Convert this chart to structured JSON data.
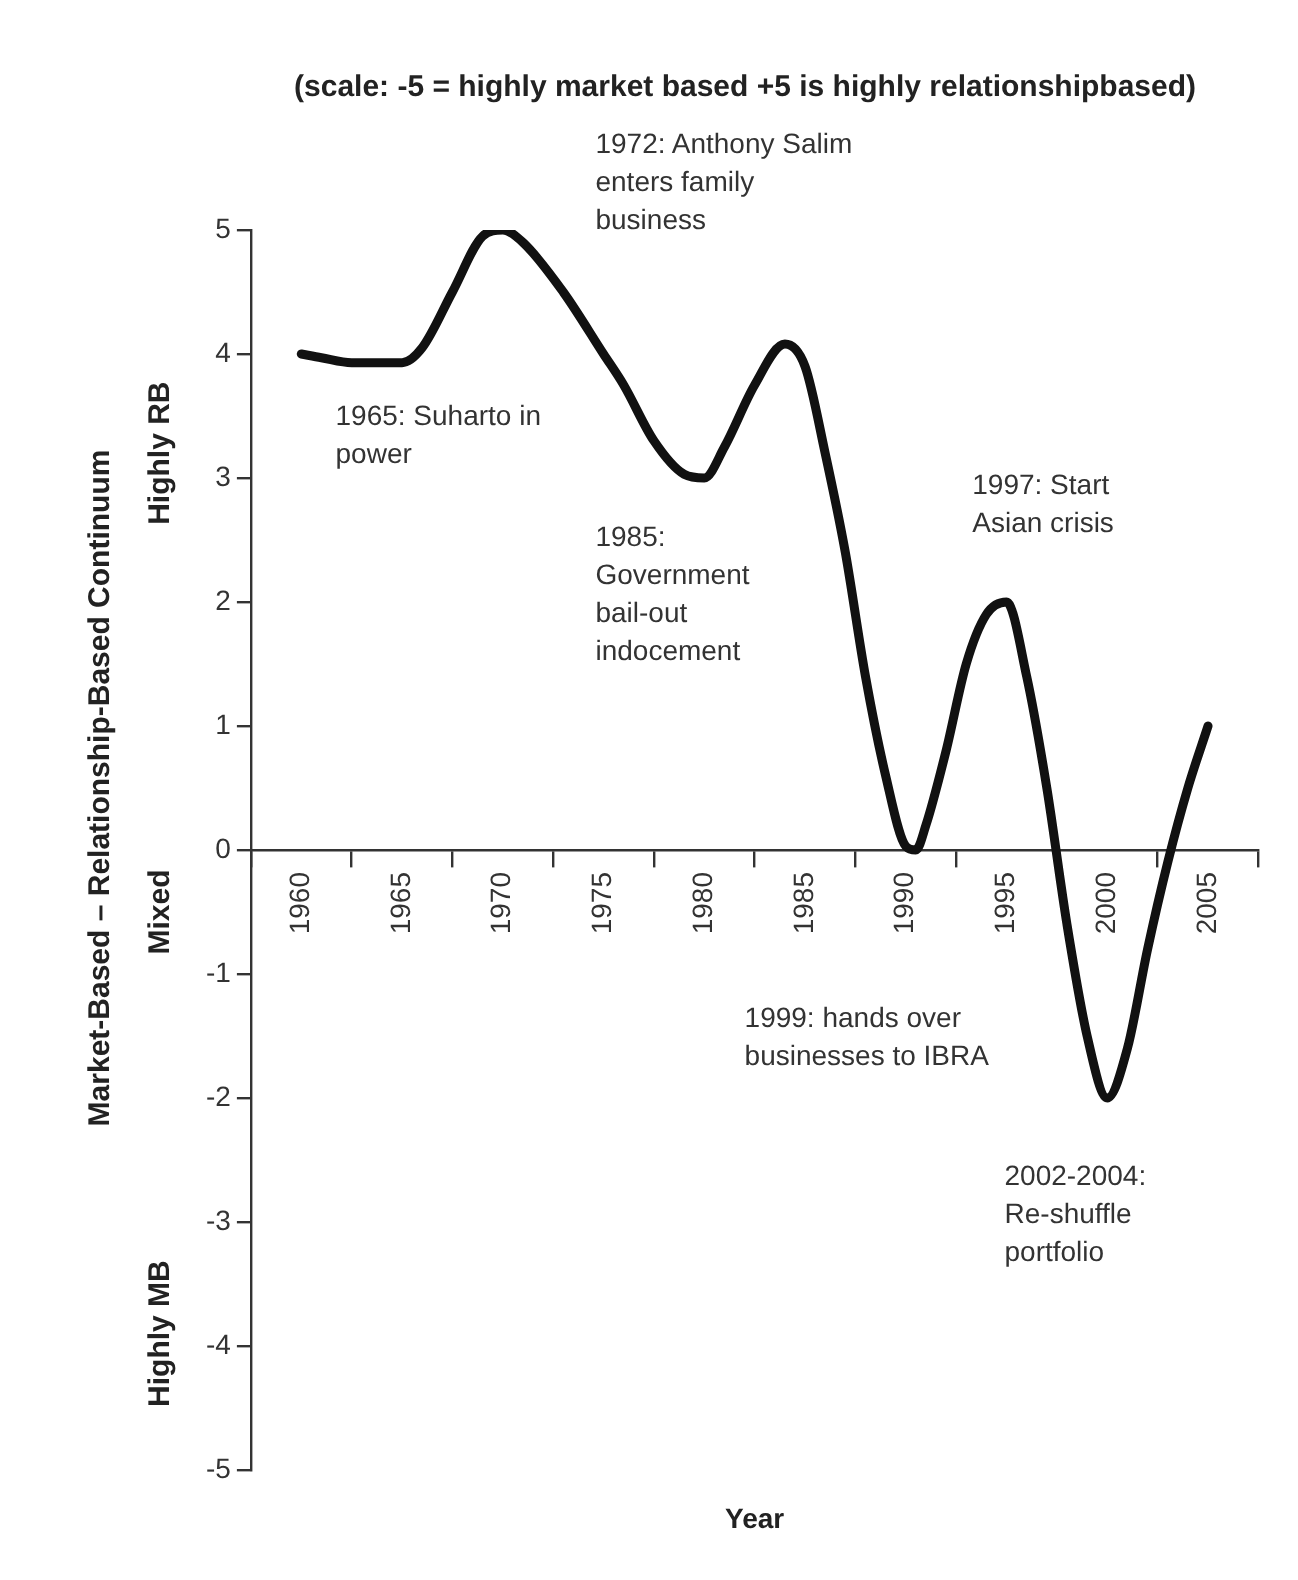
{
  "chart_data": {
    "type": "line",
    "title": "(scale: -5 = highly market based +5 is highly relationshipbased)",
    "xlabel": "Year",
    "ylabel": "Market-Based – Relationship-Based Continuum",
    "annotations": [
      "1972: Anthony Salim enters family business",
      "1965: Suharto in power",
      "1985: Government bail-out indocement",
      "1997: Start Asian crisis",
      "1999: hands over businesses to IBRA",
      "2002-2004: Re-shuffle portfolio",
      "Highly RB",
      "Mixed",
      "Highly MB"
    ],
    "x": [
      1960,
      1961,
      1962.5,
      1965,
      1966,
      1967.5,
      1969,
      1970,
      1971,
      1973,
      1975,
      1976,
      1977.5,
      1979,
      1980,
      1981,
      1982.5,
      1984,
      1985,
      1986,
      1987,
      1988,
      1989,
      1990,
      1990.5,
      1991,
      1992,
      1993,
      1994,
      1995,
      1996,
      1997,
      1998,
      1999,
      2000,
      2001,
      2002,
      2003,
      2004,
      2005
    ],
    "series": [
      {
        "color": "#111111",
        "values": [
          4,
          3.97,
          3.93,
          3.93,
          4.05,
          4.5,
          4.95,
          5,
          4.9,
          4.5,
          4,
          3.75,
          3.3,
          3.03,
          3,
          3.25,
          3.75,
          4.08,
          3.9,
          3.2,
          2.4,
          1.4,
          0.6,
          0.03,
          0,
          0.2,
          0.8,
          1.5,
          1.9,
          2,
          1.4,
          0.5,
          -0.6,
          -1.5,
          -2,
          -1.6,
          -0.8,
          -0.1,
          0.5,
          1
        ]
      }
    ],
    "xlim": [
      1957.5,
      2007.5
    ],
    "xticks": [
      {
        "value": 1957.5,
        "label": null
      },
      1960,
      {
        "value": 1962.5,
        "label": null
      },
      1965,
      {
        "value": 1967.5,
        "label": null
      },
      1970,
      {
        "value": 1972.5,
        "label": null
      },
      1975,
      {
        "value": 1977.5,
        "label": null
      },
      1980,
      {
        "value": 1982.5,
        "label": null
      },
      1985,
      {
        "value": 1987.5,
        "label": null
      },
      1990,
      {
        "value": 1992.5,
        "label": null
      },
      1995,
      {
        "value": 1997.5,
        "label": null
      },
      2000,
      {
        "value": 2002.5,
        "label": null
      },
      2005,
      {
        "value": 2007.5,
        "label": null
      }
    ],
    "ylim": [
      -5,
      5
    ],
    "yticks": [
      -5,
      -4,
      -3,
      -2,
      -1,
      0,
      1,
      2,
      3,
      4,
      5
    ],
    "grid": false,
    "legend": false,
    "marker": "none",
    "line_style": "solid"
  }
}
